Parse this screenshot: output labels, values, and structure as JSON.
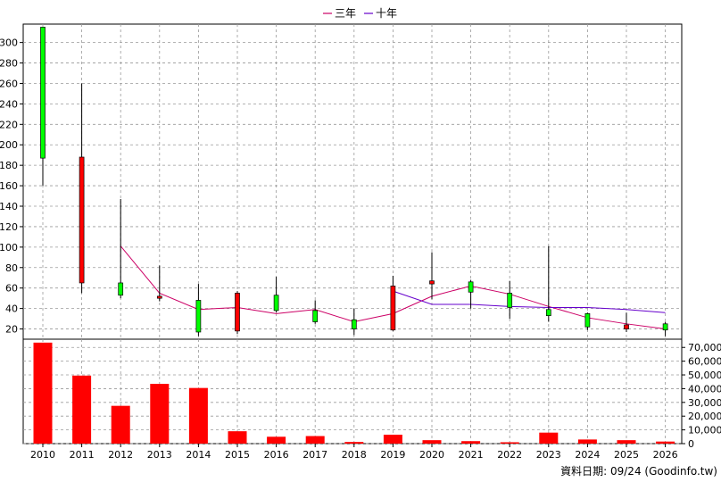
{
  "legend": [
    {
      "name": "三年",
      "color": "#cc0066"
    },
    {
      "name": "十年",
      "color": "#6600cc"
    }
  ],
  "source_note": "資料日期: 09/24  (Goodinfo.tw)",
  "chart_data": [
    {
      "type": "candlestick",
      "x": [
        "2010",
        "2011",
        "2012",
        "2013",
        "2014",
        "2015",
        "2016",
        "2017",
        "2018",
        "2019",
        "2020",
        "2021",
        "2022",
        "2023",
        "2024",
        "2025",
        "2026"
      ],
      "yticks": [
        20,
        40,
        60,
        80,
        100,
        120,
        140,
        160,
        180,
        200,
        220,
        240,
        260,
        280,
        300
      ],
      "ylim": [
        10,
        318
      ],
      "candles": [
        {
          "open": 187,
          "close": 315,
          "high": 315,
          "low": 160
        },
        {
          "open": 188,
          "close": 65,
          "high": 260,
          "low": 55
        },
        {
          "open": 53,
          "close": 65,
          "high": 147,
          "low": 50
        },
        {
          "open": 52,
          "close": 50,
          "high": 82,
          "low": 47
        },
        {
          "open": 17,
          "close": 48,
          "high": 64,
          "low": 13
        },
        {
          "open": 55,
          "close": 18,
          "high": 57,
          "low": 15
        },
        {
          "open": 38,
          "close": 53,
          "high": 71,
          "low": 36
        },
        {
          "open": 27,
          "close": 38,
          "high": 48,
          "low": 25
        },
        {
          "open": 20,
          "close": 29,
          "high": 40,
          "low": 14
        },
        {
          "open": 62,
          "close": 19,
          "high": 72,
          "low": 18
        },
        {
          "open": 67,
          "close": 64,
          "high": 95,
          "low": 49
        },
        {
          "open": 56,
          "close": 66,
          "high": 68,
          "low": 40
        },
        {
          "open": 41,
          "close": 55,
          "high": 67,
          "low": 30
        },
        {
          "open": 33,
          "close": 39,
          "high": 101,
          "low": 27
        },
        {
          "open": 22,
          "close": 35,
          "high": 36,
          "low": 19
        },
        {
          "open": 24,
          "close": 20,
          "high": 36,
          "low": 17
        },
        {
          "open": 19,
          "close": 25,
          "high": 27,
          "low": 13
        }
      ],
      "series": [
        {
          "name": "三年",
          "values": [
            null,
            null,
            101,
            55,
            39,
            41,
            35,
            39,
            27,
            35,
            52,
            62,
            54,
            42,
            31,
            25,
            20
          ]
        },
        {
          "name": "十年",
          "values": [
            null,
            null,
            null,
            null,
            null,
            null,
            null,
            null,
            null,
            57,
            44,
            44,
            42,
            41,
            41,
            39,
            36
          ]
        }
      ],
      "grid": true
    },
    {
      "type": "bar",
      "x": [
        "2010",
        "2011",
        "2012",
        "2013",
        "2014",
        "2015",
        "2016",
        "2017",
        "2018",
        "2019",
        "2020",
        "2021",
        "2022",
        "2023",
        "2024",
        "2025",
        "2026"
      ],
      "yticks": [
        0,
        10000,
        20000,
        30000,
        40000,
        50000,
        60000,
        70000
      ],
      "yticklabels": [
        "0",
        "10,000",
        "20,000",
        "30,000",
        "40,000",
        "50,000",
        "60,000",
        "70,000"
      ],
      "ylim": [
        0,
        76000
      ],
      "values": [
        73500,
        49500,
        27500,
        43500,
        40500,
        9000,
        5000,
        5500,
        1200,
        6500,
        2500,
        1800,
        1000,
        8000,
        3000,
        2500,
        1500
      ],
      "color": "#ff0000",
      "grid": true
    }
  ]
}
